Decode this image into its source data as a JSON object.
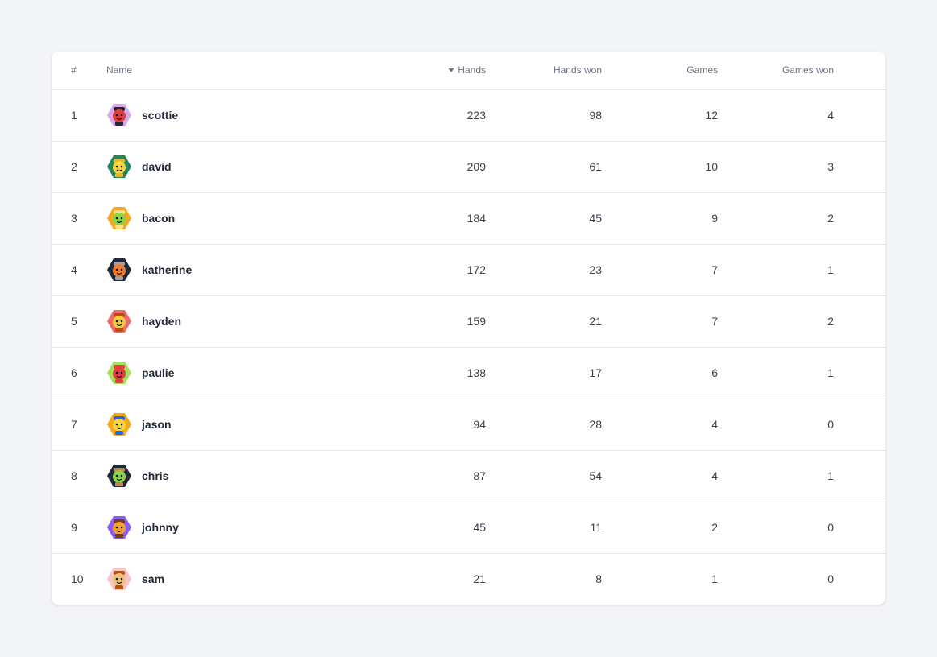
{
  "table": {
    "headers": {
      "rank": "#",
      "name": "Name",
      "hands": "Hands",
      "hands_won": "Hands won",
      "games": "Games",
      "games_won": "Games won"
    },
    "sort": {
      "column": "hands",
      "direction": "descending"
    },
    "rows": [
      {
        "rank": "1",
        "name": "scottie",
        "hands": "223",
        "hands_won": "98",
        "games": "12",
        "games_won": "4",
        "avatar": {
          "bg": "#d9a8e8",
          "face": "#e23d3d",
          "hat": "#1f2937",
          "icon": "robot-avatar-icon"
        }
      },
      {
        "rank": "2",
        "name": "david",
        "hands": "209",
        "hands_won": "61",
        "games": "10",
        "games_won": "3",
        "avatar": {
          "bg": "#22875a",
          "face": "#f6d543",
          "hat": "#f0b429",
          "icon": "chef-avatar-icon"
        }
      },
      {
        "rank": "3",
        "name": "bacon",
        "hands": "184",
        "hands_won": "45",
        "games": "9",
        "games_won": "2",
        "avatar": {
          "bg": "#f6a91c",
          "face": "#8bd34a",
          "hat": "#f6e58d",
          "icon": "angel-avatar-icon"
        }
      },
      {
        "rank": "4",
        "name": "katherine",
        "hands": "172",
        "hands_won": "23",
        "games": "7",
        "games_won": "1",
        "avatar": {
          "bg": "#1f2937",
          "face": "#f47c2c",
          "hat": "#9ca3af",
          "icon": "capped-avatar-icon"
        }
      },
      {
        "rank": "5",
        "name": "hayden",
        "hands": "159",
        "hands_won": "21",
        "games": "7",
        "games_won": "2",
        "avatar": {
          "bg": "#ef6b6b",
          "face": "#f6c945",
          "hat": "#b45309",
          "icon": "antenna-avatar-icon"
        }
      },
      {
        "rank": "6",
        "name": "paulie",
        "hands": "138",
        "hands_won": "17",
        "games": "6",
        "games_won": "1",
        "avatar": {
          "bg": "#a3e05c",
          "face": "#e23d3d",
          "hat": "#e23d3d",
          "icon": "robot-avatar-icon"
        }
      },
      {
        "rank": "7",
        "name": "jason",
        "hands": "94",
        "hands_won": "28",
        "games": "4",
        "games_won": "0",
        "avatar": {
          "bg": "#f6a91c",
          "face": "#f6d543",
          "hat": "#2563eb",
          "icon": "smile-avatar-icon"
        }
      },
      {
        "rank": "8",
        "name": "chris",
        "hands": "87",
        "hands_won": "54",
        "games": "4",
        "games_won": "1",
        "avatar": {
          "bg": "#1f2937",
          "face": "#8bd34a",
          "hat": "#c08457",
          "icon": "capped-avatar-icon"
        }
      },
      {
        "rank": "9",
        "name": "johnny",
        "hands": "45",
        "hands_won": "11",
        "games": "2",
        "games_won": "0",
        "avatar": {
          "bg": "#8b5cf6",
          "face": "#f6a02c",
          "hat": "#7c3f14",
          "icon": "monocle-avatar-icon"
        }
      },
      {
        "rank": "10",
        "name": "sam",
        "hands": "21",
        "hands_won": "8",
        "games": "1",
        "games_won": "0",
        "avatar": {
          "bg": "#f9c4c4",
          "face": "#f1c27d",
          "hat": "#b45309",
          "icon": "cowboy-avatar-icon"
        }
      }
    ]
  }
}
